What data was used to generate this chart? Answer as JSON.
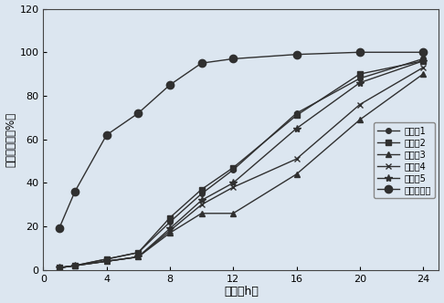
{
  "x": [
    1,
    2,
    4,
    6,
    8,
    10,
    12,
    16,
    20,
    24
  ],
  "series_order": [
    "实施例1",
    "实施例2",
    "实施例3",
    "实施例4",
    "实施例5",
    "市售缓释片"
  ],
  "series": {
    "实施例1": [
      1,
      2,
      5,
      8,
      22,
      35,
      46,
      72,
      88,
      97
    ],
    "实施例2": [
      1,
      2,
      5,
      8,
      24,
      37,
      47,
      71,
      90,
      96
    ],
    "实施例3": [
      1,
      2,
      4,
      6,
      17,
      26,
      26,
      44,
      69,
      90
    ],
    "实施例4": [
      1,
      2,
      4,
      6,
      18,
      30,
      38,
      51,
      76,
      93
    ],
    "实施例5": [
      1,
      2,
      4,
      6,
      19,
      32,
      40,
      65,
      86,
      96
    ],
    "市售缓释片": [
      19,
      36,
      62,
      72,
      85,
      95,
      97,
      99,
      100,
      100
    ]
  },
  "markers": {
    "实施例1": "o",
    "实施例2": "s",
    "实施例3": "^",
    "实施例4": "x",
    "实施例5": "*",
    "市售缓释片": "o"
  },
  "marker_sizes": {
    "实施例1": 4,
    "实施例2": 5,
    "实施例3": 5,
    "实施例4": 5,
    "实施例5": 6,
    "市售缓释片": 6
  },
  "colors": {
    "实施例1": "#303030",
    "实施例2": "#303030",
    "实施例3": "#303030",
    "实施例4": "#303030",
    "实施例5": "#303030",
    "市售缓释片": "#303030"
  },
  "xlabel": "时间（h）",
  "ylabel": "累计释放度（%）",
  "xlim": [
    0,
    25
  ],
  "ylim": [
    0,
    120
  ],
  "xticks": [
    0,
    4,
    8,
    12,
    16,
    20,
    24
  ],
  "yticks": [
    0,
    20,
    40,
    60,
    80,
    100,
    120
  ],
  "background_color": "#dce6f0",
  "plot_bg_color": "#dce6f0",
  "linewidth": 1.0
}
